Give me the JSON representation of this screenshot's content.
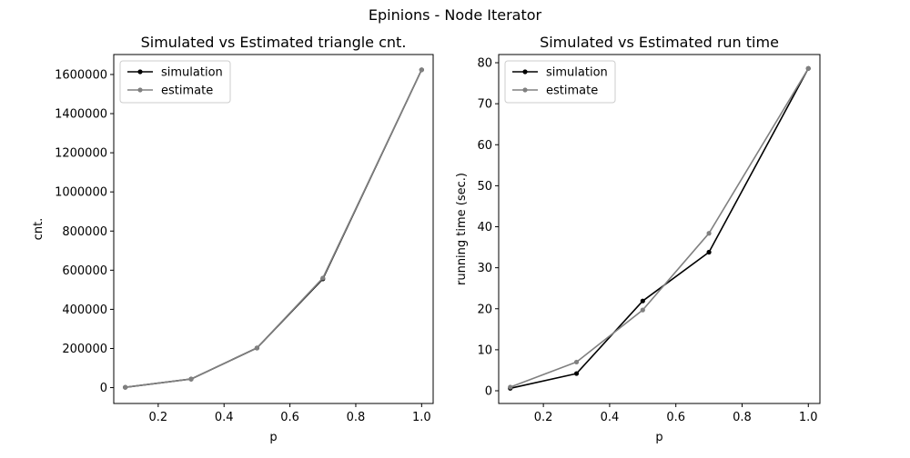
{
  "figure_title": "Epinions - Node Iterator",
  "chart_data": [
    {
      "type": "line",
      "title": "Simulated vs Estimated triangle cnt.",
      "xlabel": "p",
      "ylabel": "cnt.",
      "xlim": [
        0.065,
        1.035
      ],
      "ylim": [
        -81000,
        1702000
      ],
      "xticks": [
        0.2,
        0.4,
        0.6,
        0.8,
        1.0
      ],
      "xtick_labels": [
        "0.2",
        "0.4",
        "0.6",
        "0.8",
        "1.0"
      ],
      "yticks": [
        0,
        200000,
        400000,
        600000,
        800000,
        1000000,
        1200000,
        1400000,
        1600000
      ],
      "ytick_labels": [
        "0",
        "200000",
        "400000",
        "600000",
        "800000",
        "1000000",
        "1200000",
        "1400000",
        "1600000"
      ],
      "x": [
        0.1,
        0.3,
        0.5,
        0.7,
        1.0
      ],
      "legend_position": "upper-left",
      "series": [
        {
          "name": "simulation",
          "color": "#000000",
          "values": [
            1600,
            43700,
            202500,
            555600,
            1624000
          ]
        },
        {
          "name": "estimate",
          "color": "#808080",
          "values": [
            1700,
            43900,
            203000,
            560000,
            1624000
          ]
        }
      ]
    },
    {
      "type": "line",
      "title": "Simulated vs Estimated run time",
      "xlabel": "p",
      "ylabel": "running time (sec.)",
      "xlim": [
        0.065,
        1.035
      ],
      "ylim": [
        -3.1,
        82.0
      ],
      "xticks": [
        0.2,
        0.4,
        0.6,
        0.8,
        1.0
      ],
      "xtick_labels": [
        "0.2",
        "0.4",
        "0.6",
        "0.8",
        "1.0"
      ],
      "yticks": [
        0,
        10,
        20,
        30,
        40,
        50,
        60,
        70,
        80
      ],
      "ytick_labels": [
        "0",
        "10",
        "20",
        "30",
        "40",
        "50",
        "60",
        "70",
        "80"
      ],
      "x": [
        0.1,
        0.3,
        0.5,
        0.7,
        1.0
      ],
      "legend_position": "upper-left",
      "series": [
        {
          "name": "simulation",
          "color": "#000000",
          "values": [
            0.6,
            4.2,
            21.9,
            33.8,
            78.6
          ]
        },
        {
          "name": "estimate",
          "color": "#808080",
          "values": [
            0.9,
            7.0,
            19.7,
            38.4,
            78.6
          ]
        }
      ]
    }
  ]
}
